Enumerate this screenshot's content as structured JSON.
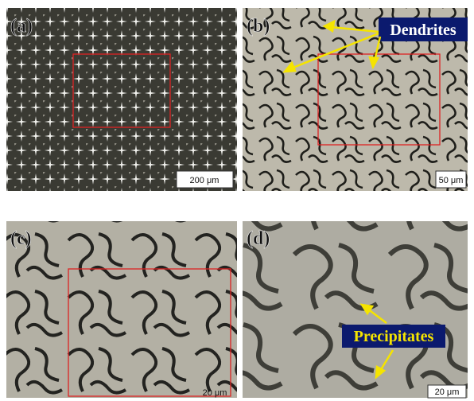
{
  "panels": [
    {
      "label": "(a)",
      "scale_bar": "200 μm"
    },
    {
      "label": "(b)",
      "scale_bar": "50 μm",
      "annotation": "Dendrites"
    },
    {
      "label": "(c)",
      "scale_bar": "20 μm"
    },
    {
      "label": "(d)",
      "scale_bar": "20 μm",
      "annotation": "Precipitates"
    }
  ]
}
